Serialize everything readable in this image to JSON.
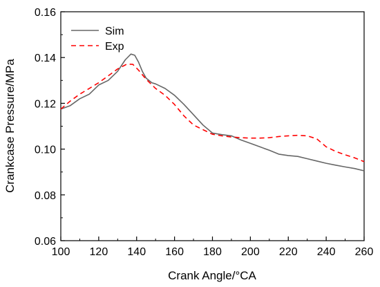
{
  "chart_data": {
    "type": "line",
    "title": "",
    "xlabel": "Crank Angle/°CA",
    "ylabel": "Crankcase Pressure/MPa",
    "xlim": [
      100,
      260
    ],
    "ylim": [
      0.06,
      0.16
    ],
    "xticks": [
      100,
      120,
      140,
      160,
      180,
      200,
      220,
      240,
      260
    ],
    "yticks": [
      0.06,
      0.08,
      0.1,
      0.12,
      0.14,
      0.16
    ],
    "xtick_labels": [
      "100",
      "120",
      "140",
      "160",
      "180",
      "200",
      "220",
      "240",
      "260"
    ],
    "ytick_labels": [
      "0.06",
      "0.08",
      "0.10",
      "0.12",
      "0.14",
      "0.16"
    ],
    "grid": false,
    "legend_position": "top-left",
    "series": [
      {
        "name": "Sim",
        "color": "#666666",
        "style": "solid",
        "x": [
          100,
          105,
          110,
          115,
          120,
          125,
          130,
          134,
          137,
          139,
          141,
          143,
          145,
          148,
          150,
          155,
          160,
          165,
          170,
          175,
          180,
          185,
          190,
          195,
          200,
          205,
          210,
          215,
          220,
          225,
          230,
          235,
          240,
          245,
          250,
          255,
          260
        ],
        "y": [
          0.1175,
          0.119,
          0.122,
          0.124,
          0.128,
          0.13,
          0.134,
          0.139,
          0.1415,
          0.141,
          0.138,
          0.134,
          0.131,
          0.129,
          0.1285,
          0.1265,
          0.1235,
          0.1195,
          0.115,
          0.1105,
          0.107,
          0.1063,
          0.1058,
          0.104,
          0.1025,
          0.101,
          0.0995,
          0.0978,
          0.0972,
          0.0968,
          0.0958,
          0.0948,
          0.0938,
          0.093,
          0.0922,
          0.0915,
          0.0905
        ]
      },
      {
        "name": "Exp",
        "color": "#ff0000",
        "style": "dashed",
        "x": [
          100,
          105,
          110,
          115,
          120,
          125,
          130,
          135,
          138,
          141,
          145,
          150,
          155,
          160,
          165,
          170,
          175,
          180,
          185,
          190,
          195,
          200,
          205,
          210,
          215,
          220,
          225,
          230,
          235,
          240,
          245,
          250,
          255,
          260
        ],
        "y": [
          0.1175,
          0.121,
          0.124,
          0.1265,
          0.129,
          0.132,
          0.135,
          0.1372,
          0.137,
          0.1345,
          0.1305,
          0.1265,
          0.1235,
          0.1195,
          0.1145,
          0.1105,
          0.1085,
          0.1065,
          0.1058,
          0.1053,
          0.105,
          0.1048,
          0.1048,
          0.105,
          0.1055,
          0.1058,
          0.106,
          0.1058,
          0.1045,
          0.101,
          0.099,
          0.0975,
          0.0962,
          0.0945
        ]
      }
    ]
  }
}
